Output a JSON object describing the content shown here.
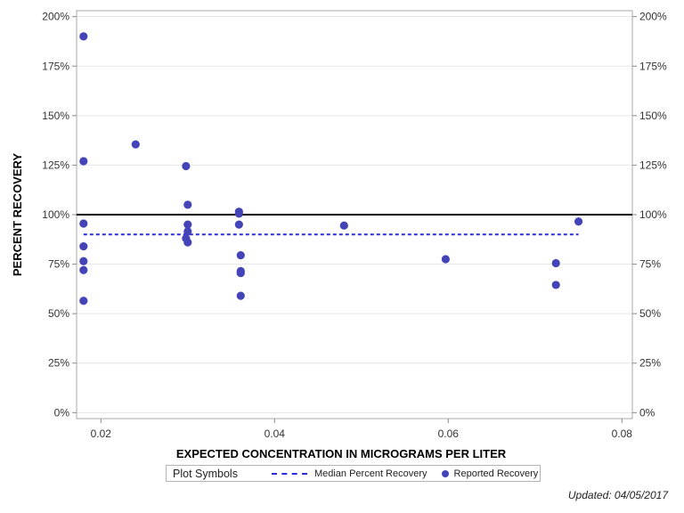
{
  "chart_data": {
    "type": "scatter",
    "xlabel": "EXPECTED CONCENTRATION IN MICROGRAMS PER LITER",
    "ylabel": "PERCENT RECOVERY",
    "xlim": [
      0.0172,
      0.0812
    ],
    "ylim": [
      -3,
      203
    ],
    "x_ticks": [
      0.02,
      0.04,
      0.06,
      0.08
    ],
    "x_tick_labels": [
      "0.02",
      "0.04",
      "0.06",
      "0.08"
    ],
    "y_ticks": [
      0,
      25,
      50,
      75,
      100,
      125,
      150,
      175,
      200
    ],
    "y_tick_labels": [
      "0%",
      "25%",
      "50%",
      "75%",
      "100%",
      "125%",
      "150%",
      "175%",
      "200%"
    ],
    "grid": "horizontal",
    "reference_line": 100,
    "median_line": {
      "name": "Median Percent Recovery",
      "y": 90,
      "x_range": [
        0.018,
        0.075
      ],
      "color": "#2b2be0"
    },
    "series": [
      {
        "name": "Reported Recovery",
        "color": "#4444b8",
        "points": [
          [
            0.018,
            190
          ],
          [
            0.018,
            127
          ],
          [
            0.018,
            95.5
          ],
          [
            0.018,
            84
          ],
          [
            0.018,
            76.5
          ],
          [
            0.018,
            72
          ],
          [
            0.018,
            56.5
          ],
          [
            0.024,
            135.5
          ],
          [
            0.0298,
            124.5
          ],
          [
            0.03,
            105
          ],
          [
            0.03,
            95
          ],
          [
            0.03,
            91.5
          ],
          [
            0.0298,
            88
          ],
          [
            0.03,
            86
          ],
          [
            0.0359,
            101.5
          ],
          [
            0.0359,
            100.5
          ],
          [
            0.0359,
            95
          ],
          [
            0.0361,
            79.5
          ],
          [
            0.0361,
            71.5
          ],
          [
            0.0361,
            70.5
          ],
          [
            0.0361,
            59
          ],
          [
            0.048,
            94.5
          ],
          [
            0.0597,
            77.5
          ],
          [
            0.0724,
            75.5
          ],
          [
            0.0724,
            64.5
          ],
          [
            0.075,
            96.5
          ]
        ]
      }
    ]
  },
  "legend": {
    "title": "Plot Symbols",
    "median_label": "Median Percent Recovery",
    "reported_label": "Reported Recovery"
  },
  "footer": {
    "updated": "Updated: 04/05/2017"
  }
}
